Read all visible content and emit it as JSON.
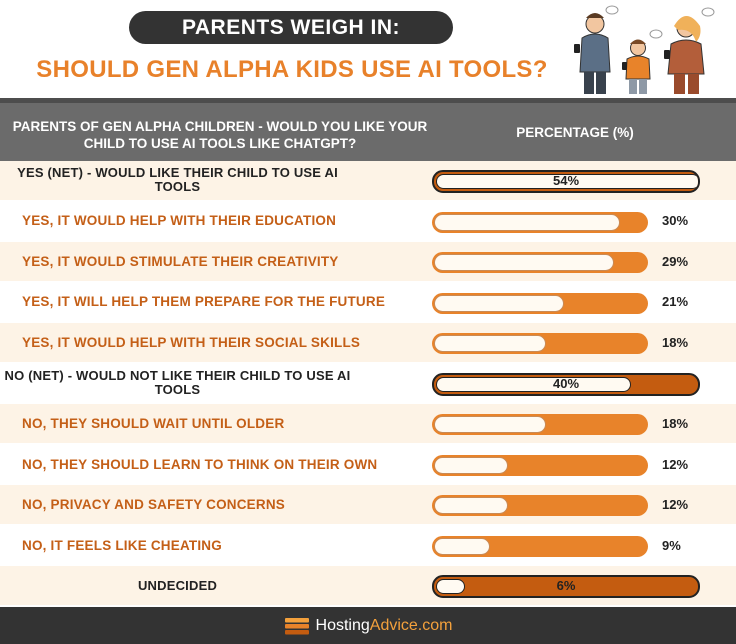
{
  "title": "PARENTS WEIGH IN:",
  "subtitle": "SHOULD GEN ALPHA KIDS USE AI TOOLS?",
  "column_headers": {
    "question": "PARENTS OF GEN ALPHA CHILDREN - WOULD YOU LIKE YOUR CHILD TO USE AI TOOLS LIKE CHATGPT?",
    "percentage": "PERCENTAGE (%)"
  },
  "footer": {
    "brand_a": "Hosting",
    "brand_b": "Advice",
    "brand_c": ".com"
  },
  "colors": {
    "accent": "#e8832a",
    "dark_accent": "#c45c10",
    "header_bg": "#6b6b6b",
    "dark": "#333333"
  },
  "chart_data": {
    "type": "bar",
    "orientation": "horizontal",
    "title": "PARENTS WEIGH IN:",
    "subtitle": "SHOULD GEN ALPHA KIDS USE AI TOOLS?",
    "xlim": [
      0,
      100
    ],
    "categories": [
      "YES (NET) - WOULD LIKE THEIR CHILD TO USE AI TOOLS",
      "YES, IT WOULD HELP WITH THEIR EDUCATION",
      "YES, IT WOULD STIMULATE THEIR CREATIVITY",
      "YES, IT WILL HELP THEM PREPARE FOR THE FUTURE",
      "YES, IT WOULD HELP WITH THEIR SOCIAL SKILLS",
      "NO (NET) - WOULD NOT LIKE THEIR CHILD TO USE AI TOOLS",
      "NO, THEY SHOULD WAIT UNTIL OLDER",
      "NO, THEY SHOULD LEARN TO THINK ON THEIR OWN",
      "NO, PRIVACY AND SAFETY CONCERNS",
      "NO, IT FEELS LIKE CHEATING",
      "UNDECIDED"
    ],
    "values": [
      54,
      30,
      29,
      21,
      18,
      40,
      18,
      12,
      12,
      9,
      6
    ],
    "value_labels": [
      "54%",
      "30%",
      "29%",
      "21%",
      "18%",
      "40%",
      "18%",
      "12%",
      "12%",
      "9%",
      "6%"
    ],
    "row_kinds": [
      "net",
      "sub",
      "sub",
      "sub",
      "sub",
      "net",
      "sub",
      "sub",
      "sub",
      "sub",
      "net"
    ]
  }
}
